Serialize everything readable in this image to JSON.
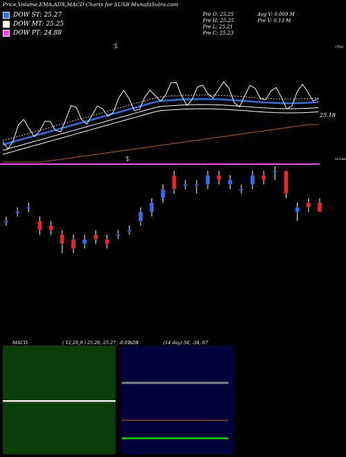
{
  "title": "Price,Volume,EMA,ADX,MACD Charts for SUSB MunafaSutra.com",
  "legend": [
    {
      "label": "DOW ST: 25.27",
      "color": "#2c6fe8"
    },
    {
      "label": "DOW MT: 25.25",
      "color": "#ffffff"
    },
    {
      "label": "DOW PT: 24.88",
      "color": "#ff40ff"
    }
  ],
  "ohlc": {
    "open": "Pre   O: 25.25",
    "high": "Pre   H: 25.25",
    "low": "Pre   L: 25.21",
    "close": "Pre   C: 25.23",
    "avg_vol": "Avg V: 0.009 M",
    "vol": "Pre   V: 0.13 M"
  },
  "labels": {
    "upper": "«Top",
    "lower": "«Lower",
    "last_price": "25.18",
    "top_z": "Z",
    "mid_z": "Z"
  },
  "macd": {
    "label": "MACD:",
    "params": "( 12,26,9 ) 25.26,  25.27,  -0.01"
  },
  "adx": {
    "label": "ADX",
    "params": "(14  day) 34,  -34,  67"
  },
  "colors": {
    "up": "#2c6fe8",
    "down": "#e8262c",
    "ema_fast": "#2c6fe8",
    "ema_band": "#ffffff",
    "ema_slow": "#b5651d",
    "lower_band": "#ff40ff",
    "macd_bg": "#0b3d0b",
    "adx_bg": "#00003a",
    "adx_line1": "#888888",
    "adx_line2": "#d2691e",
    "adx_line3": "#00e000"
  },
  "chart_data": [
    {
      "type": "candlestick",
      "title": "",
      "series": [
        {
          "name": "price",
          "candles": [
            [
              25.2,
              25.21,
              25.19,
              25.2
            ],
            [
              25.22,
              25.23,
              25.21,
              25.22
            ],
            [
              25.23,
              25.24,
              25.22,
              25.23
            ],
            [
              25.2,
              25.21,
              25.17,
              25.18
            ],
            [
              25.19,
              25.2,
              25.17,
              25.18
            ],
            [
              25.17,
              25.18,
              25.13,
              25.15
            ],
            [
              25.16,
              25.17,
              25.13,
              25.14
            ],
            [
              25.15,
              25.17,
              25.14,
              25.16
            ],
            [
              25.17,
              25.18,
              25.15,
              25.16
            ],
            [
              25.16,
              25.17,
              25.14,
              25.15
            ],
            [
              25.17,
              25.18,
              25.16,
              25.17
            ],
            [
              25.18,
              25.19,
              25.17,
              25.18
            ],
            [
              25.2,
              25.23,
              25.19,
              25.22
            ],
            [
              25.22,
              25.25,
              25.21,
              25.24
            ],
            [
              25.25,
              25.28,
              25.24,
              25.27
            ],
            [
              25.3,
              25.31,
              25.26,
              25.27
            ],
            [
              25.28,
              25.29,
              25.27,
              25.28
            ],
            [
              25.28,
              25.29,
              25.26,
              25.28
            ],
            [
              25.28,
              25.31,
              25.27,
              25.3
            ],
            [
              25.3,
              25.31,
              25.28,
              25.29
            ],
            [
              25.28,
              25.3,
              25.27,
              25.29
            ],
            [
              25.27,
              25.28,
              25.26,
              25.27
            ],
            [
              25.28,
              25.31,
              25.27,
              25.3
            ],
            [
              25.3,
              25.31,
              25.28,
              25.29
            ],
            [
              25.31,
              25.32,
              25.29,
              25.31
            ],
            [
              25.31,
              25.31,
              25.25,
              25.26
            ],
            [
              25.22,
              25.24,
              25.2,
              25.23
            ],
            [
              25.24,
              25.25,
              25.22,
              25.23
            ],
            [
              25.24,
              25.25,
              25.22,
              25.22
            ]
          ]
        }
      ]
    },
    {
      "type": "line",
      "title": "MACD",
      "series": [
        {
          "name": "MACD",
          "values": [
            25.26,
            25.27,
            -0.01
          ]
        }
      ]
    },
    {
      "type": "line",
      "title": "ADX",
      "series": [
        {
          "name": "ADX",
          "values": [
            34,
            -34,
            67
          ]
        }
      ]
    }
  ]
}
